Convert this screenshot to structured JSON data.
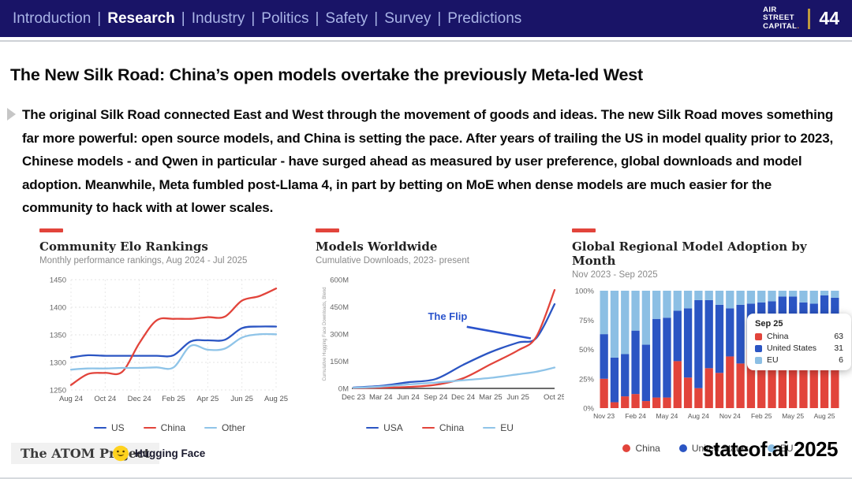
{
  "nav": {
    "items": [
      "Introduction",
      "Research",
      "Industry",
      "Politics",
      "Safety",
      "Survey",
      "Predictions"
    ],
    "active": "Research",
    "logo_lines": [
      "AIR",
      "STREET",
      "CAPITAL"
    ],
    "logo_dot": ".",
    "page_number": "44"
  },
  "slide": {
    "title": "The New Silk Road: China’s open models overtake the previously Meta-led West",
    "paragraph": "The original Silk Road connected East and West through the movement of goods and ideas. The new Silk Road moves something far more powerful: open source models, and China is setting the pace. After years of trailing the US in model quality prior to 2023, Chinese models - and Qwen in particular - have surged ahead as measured by user preference, global downloads and model adoption. Meanwhile, Meta fumbled post-Llama 4, in part by betting on MoE when dense models are much easier for the community to hack with at lower scales."
  },
  "colors": {
    "nav_bg": "#191467",
    "accent_red": "#e2443b",
    "accent_orange": "#e89b3c",
    "dark_blue": "#2b55c3",
    "light_blue": "#8fc4e8",
    "flip_blue": "#2a53cc"
  },
  "chart_data": [
    {
      "type": "line",
      "title": "Community Elo Rankings",
      "subtitle": "Monthly performance rankings, Aug 2024 - Jul 2025",
      "ylim": [
        1250,
        1450
      ],
      "yticks": [
        {
          "v": 1250,
          "label": "1250"
        },
        {
          "v": 1300,
          "label": "1300"
        },
        {
          "v": 1350,
          "label": "1350"
        },
        {
          "v": 1400,
          "label": "1400"
        },
        {
          "v": 1450,
          "label": "1450"
        }
      ],
      "x_max": 12,
      "x_points": [
        0,
        1,
        2,
        3,
        4,
        5,
        6,
        7,
        8,
        9,
        10,
        11,
        12
      ],
      "x_ticks": [
        {
          "pos": 0,
          "label": "Aug 24"
        },
        {
          "pos": 2,
          "label": "Oct 24"
        },
        {
          "pos": 4,
          "label": "Dec 24"
        },
        {
          "pos": 6,
          "label": "Feb 25"
        },
        {
          "pos": 8,
          "label": "Apr 25"
        },
        {
          "pos": 10,
          "label": "Jun 25"
        },
        {
          "pos": 12,
          "label": "Aug 25"
        }
      ],
      "series": [
        {
          "name": "US",
          "color": "#2b55c3",
          "values": [
            1309,
            1313,
            1312,
            1312,
            1312,
            1312,
            1313,
            1338,
            1340,
            1341,
            1362,
            1365,
            1365
          ]
        },
        {
          "name": "China",
          "color": "#e2443b",
          "values": [
            1259,
            1279,
            1281,
            1283,
            1335,
            1376,
            1379,
            1379,
            1382,
            1383,
            1412,
            1420,
            1434
          ]
        },
        {
          "name": "Other",
          "color": "#8fc4e8",
          "values": [
            1287,
            1289,
            1289,
            1290,
            1290,
            1291,
            1291,
            1330,
            1323,
            1325,
            1345,
            1351,
            1351
          ]
        }
      ],
      "legend_position": "bottom",
      "grid": true
    },
    {
      "type": "line",
      "title": "Models Worldwide",
      "subtitle": "Cumulative Downloads, 2023- present",
      "ylabel": "Cumulative Hugging Face Downloads, Blend",
      "annotation": "The Flip",
      "ylim": [
        0,
        600
      ],
      "yticks": [
        {
          "v": 0,
          "label": "0M"
        },
        {
          "v": 150,
          "label": "150M"
        },
        {
          "v": 300,
          "label": "300M"
        },
        {
          "v": 450,
          "label": "450M"
        },
        {
          "v": 600,
          "label": "600M"
        }
      ],
      "x_max": 22,
      "x_points": [
        0,
        3,
        6,
        9,
        12,
        15,
        18,
        20,
        22
      ],
      "x_ticks": [
        {
          "pos": 0,
          "label": "Dec 23"
        },
        {
          "pos": 3,
          "label": "Mar 24"
        },
        {
          "pos": 6,
          "label": "Jun 24"
        },
        {
          "pos": 9,
          "label": "Sep 24"
        },
        {
          "pos": 12,
          "label": "Dec 24"
        },
        {
          "pos": 15,
          "label": "Mar 25"
        },
        {
          "pos": 18,
          "label": "Jun 25"
        },
        {
          "pos": 22,
          "label": "Oct 25"
        }
      ],
      "series": [
        {
          "name": "USA",
          "color": "#2b55c3",
          "values": [
            5,
            14,
            34,
            52,
            130,
            200,
            253,
            278,
            465
          ]
        },
        {
          "name": "China",
          "color": "#e2443b",
          "values": [
            2,
            4,
            8,
            20,
            56,
            133,
            210,
            285,
            543
          ]
        },
        {
          "name": "EU",
          "color": "#8fc4e8",
          "values": [
            3,
            10,
            22,
            32,
            45,
            58,
            78,
            92,
            115
          ]
        }
      ],
      "legend_position": "bottom",
      "grid": false
    },
    {
      "type": "stacked-bar",
      "title": "Global Regional Model Adoption by Month",
      "subtitle": "Nov 2023 - Sep 2025",
      "ylim": [
        0,
        100
      ],
      "yticks": [
        {
          "v": 0,
          "label": "0%"
        },
        {
          "v": 25,
          "label": "25%"
        },
        {
          "v": 50,
          "label": "50%"
        },
        {
          "v": 75,
          "label": "75%"
        },
        {
          "v": 100,
          "label": "100%"
        }
      ],
      "categories": [
        "Nov 23",
        "Dec 23",
        "Jan 24",
        "Feb 24",
        "Mar 24",
        "Apr 24",
        "May 24",
        "Jun 24",
        "Jul 24",
        "Aug 24",
        "Sep 24",
        "Oct 24",
        "Nov 24",
        "Dec 24",
        "Jan 25",
        "Feb 25",
        "Mar 25",
        "Apr 25",
        "May 25",
        "Jun 25",
        "Jul 25",
        "Aug 25",
        "Sep 25"
      ],
      "x_ticks": [
        {
          "pos": 0,
          "label": "Nov 23"
        },
        {
          "pos": 3,
          "label": "Feb 24"
        },
        {
          "pos": 6,
          "label": "May 24"
        },
        {
          "pos": 9,
          "label": "Aug 24"
        },
        {
          "pos": 12,
          "label": "Nov 24"
        },
        {
          "pos": 15,
          "label": "Feb 25"
        },
        {
          "pos": 18,
          "label": "May 25"
        },
        {
          "pos": 21,
          "label": "Aug 25"
        }
      ],
      "series": [
        {
          "name": "China",
          "color": "#e2443b",
          "values": [
            25,
            5,
            10,
            12,
            6,
            9,
            9,
            40,
            26,
            17,
            34,
            30,
            44,
            38,
            50,
            52,
            48,
            55,
            50,
            42,
            45,
            60,
            63
          ]
        },
        {
          "name": "United States",
          "color": "#2b55c3",
          "values": [
            38,
            38,
            36,
            54,
            48,
            67,
            68,
            43,
            59,
            75,
            58,
            58,
            41,
            50,
            39,
            38,
            43,
            40,
            45,
            48,
            44,
            36,
            31
          ]
        },
        {
          "name": "EU",
          "color": "#8cbfe4",
          "values": [
            37,
            57,
            54,
            34,
            46,
            24,
            23,
            17,
            15,
            8,
            8,
            12,
            15,
            12,
            11,
            10,
            9,
            5,
            5,
            10,
            11,
            4,
            6
          ]
        }
      ],
      "tooltip": {
        "title": "Sep 25",
        "rows": [
          {
            "name": "China",
            "value": "63"
          },
          {
            "name": "United States",
            "value": "31"
          },
          {
            "name": "EU",
            "value": "6"
          }
        ]
      },
      "legend_position": "bottom"
    }
  ],
  "footer": {
    "atom_label": "The ATOM Project",
    "hf_label": "Hugging Face",
    "brand": "stateof.ai 2025"
  }
}
